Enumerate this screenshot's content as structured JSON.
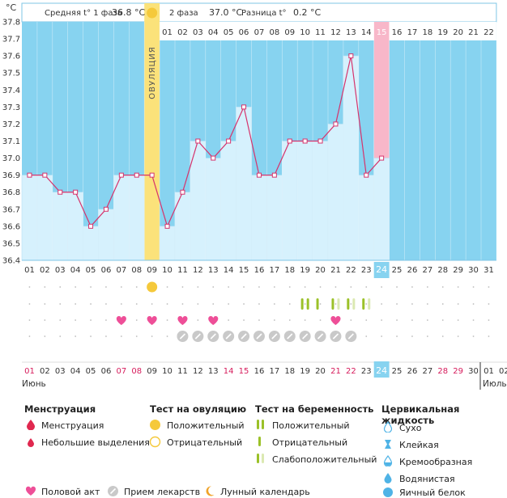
{
  "header": {
    "unit": "°C",
    "avg_phase1_label": "Средняя t° 1 фаза",
    "avg_phase1_value": "36.8 °C",
    "phase2_label": "2 фаза",
    "phase2_value": "37.0 °C",
    "diff_label": "Разница t°",
    "diff_value": "0.2 °C"
  },
  "chart_data": {
    "type": "line",
    "title": "",
    "xlabel": "",
    "ylabel": "°C",
    "ylim": [
      36.4,
      37.8
    ],
    "y_ticks": [
      "36.4",
      "36.5",
      "36.6",
      "36.7",
      "36.8",
      "36.9",
      "37.0",
      "37.1",
      "37.2",
      "37.3",
      "37.4",
      "37.5",
      "37.6",
      "37.7",
      "37.8"
    ],
    "cycle_days": [
      "01",
      "02",
      "03",
      "04",
      "05",
      "06",
      "07",
      "08",
      "09",
      "10",
      "11",
      "12",
      "13",
      "14",
      "15",
      "16",
      "17",
      "18",
      "19",
      "20",
      "21",
      "22",
      "23",
      "24",
      "25",
      "26",
      "27",
      "28",
      "29",
      "30",
      "31"
    ],
    "phase2_day_labels": [
      "01",
      "02",
      "03",
      "04",
      "05",
      "06",
      "07",
      "08",
      "09",
      "10",
      "11",
      "12",
      "13",
      "14",
      "15",
      "16",
      "17",
      "18",
      "19",
      "20",
      "21",
      "22"
    ],
    "temperatures": [
      36.9,
      36.9,
      36.8,
      36.8,
      36.6,
      36.7,
      36.9,
      36.9,
      36.9,
      36.6,
      36.8,
      37.1,
      37.0,
      37.1,
      37.3,
      36.9,
      36.9,
      37.1,
      37.1,
      37.1,
      37.2,
      37.6,
      36.9,
      37.0
    ],
    "ovulation_day": 9,
    "ovulation_label": "ОВУЛЯЦИЯ",
    "current_day": 24,
    "marker_rows": {
      "ovulation_positive_days": [
        9
      ],
      "pregnancy_test_days": [
        19,
        20,
        21,
        22,
        23
      ],
      "sex_days": [
        7,
        9,
        11,
        13,
        21
      ],
      "medication_days": [
        11,
        12,
        13,
        14,
        15,
        16,
        17,
        18,
        19,
        20,
        21,
        22
      ]
    },
    "calendar_dates": [
      "01",
      "02",
      "03",
      "04",
      "05",
      "06",
      "07",
      "08",
      "09",
      "10",
      "11",
      "12",
      "13",
      "14",
      "15",
      "16",
      "17",
      "18",
      "19",
      "20",
      "21",
      "22",
      "23",
      "24",
      "25",
      "26",
      "27",
      "28",
      "29",
      "30",
      "01",
      "02"
    ],
    "calendar_red_dates": [
      "01",
      "07",
      "08",
      "14",
      "15",
      "21",
      "22",
      "28",
      "29"
    ],
    "month_june": "Июнь",
    "month_july": "Июль"
  },
  "legend": {
    "menstruation": {
      "title": "Менструация",
      "items": [
        "Менструация",
        "Небольшие выделения"
      ]
    },
    "ovulation_test": {
      "title": "Тест на овуляцию",
      "items": [
        "Положительный",
        "Отрицательный"
      ]
    },
    "pregnancy_test": {
      "title": "Тест на беременность",
      "items": [
        "Положительный",
        "Отрицательный",
        "Слабоположительный"
      ]
    },
    "cervical": {
      "title": "Цервикальная жидкость",
      "items": [
        "Сухо",
        "Клейкая",
        "Кремообразная",
        "Водянистая",
        "Яичный белок"
      ]
    },
    "bottom": [
      "Половой акт",
      "Прием лекарств",
      "Лунный календарь"
    ]
  },
  "colors": {
    "plot_bg": "#87d3f0",
    "bar_fill": "#d6f1fd",
    "line": "#d6336c",
    "ovulation": "#fbe27a",
    "current_day": "#f8b7c9",
    "heart": "#ee4f98",
    "pill": "#c9c9c9",
    "sun": "#f5c93b",
    "green": "#9bc128",
    "red_text": "#d61b5b",
    "water": "#4fb3e6"
  }
}
